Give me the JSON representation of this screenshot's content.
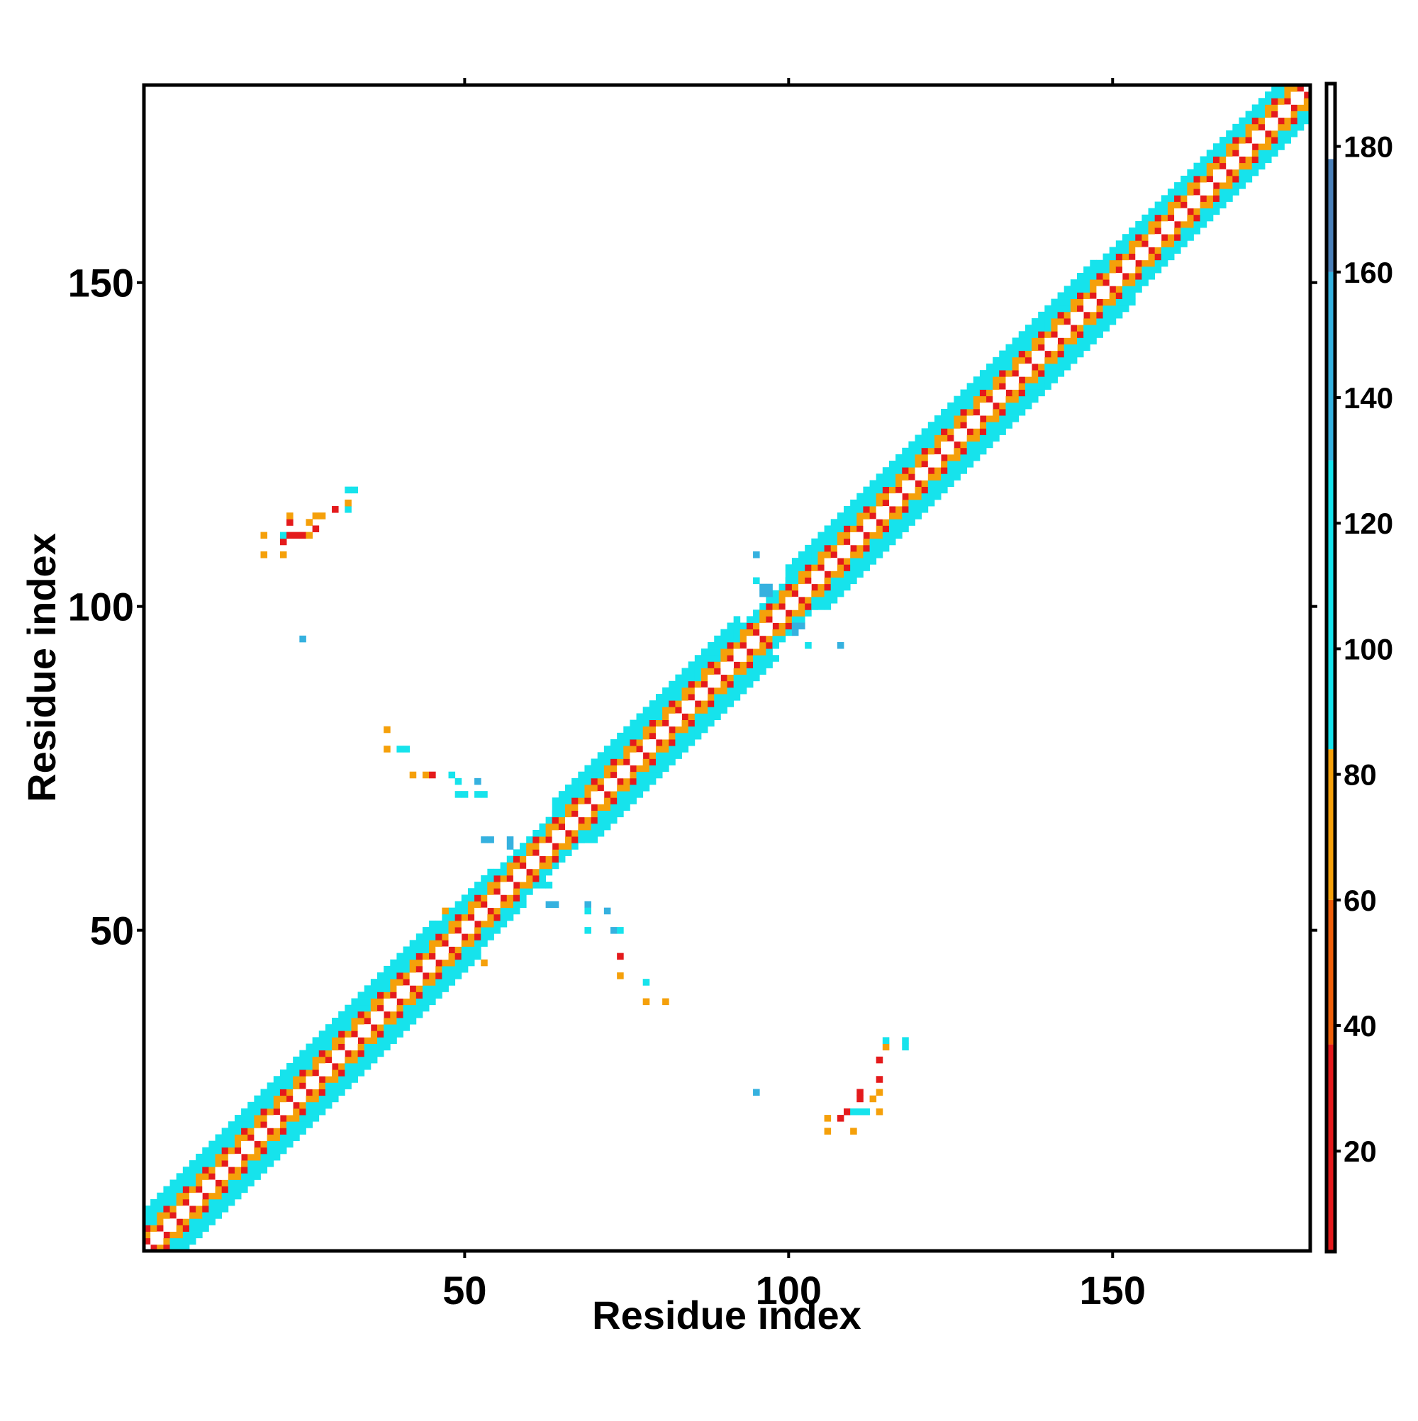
{
  "chart_data": {
    "type": "heatmap",
    "title": "",
    "xlabel": "Residue index",
    "ylabel": "Residue index",
    "xlim": [
      1,
      180
    ],
    "ylim": [
      1,
      180
    ],
    "x_ticks": [
      50,
      100,
      150
    ],
    "y_ticks": [
      50,
      100,
      150
    ],
    "x_tick_labels": [
      "50",
      "100",
      "150"
    ],
    "y_tick_labels": [
      "50",
      "100",
      "150"
    ],
    "grid": false,
    "legend": "colorbar-right",
    "colorbar": {
      "range": [
        4,
        190
      ],
      "ticks": [
        20,
        40,
        60,
        80,
        100,
        120,
        140,
        160,
        180
      ],
      "tick_labels": [
        "20",
        "40",
        "60",
        "80",
        "100",
        "120",
        "140",
        "160",
        "180"
      ],
      "bands": [
        {
          "from": 4,
          "to": 37,
          "color": "#e41a1c"
        },
        {
          "from": 37,
          "to": 60,
          "color": "#ef5f0a"
        },
        {
          "from": 60,
          "to": 84,
          "color": "#f5a00a"
        },
        {
          "from": 84,
          "to": 130,
          "color": "#16e3ec"
        },
        {
          "from": 130,
          "to": 160,
          "color": "#35b1df"
        },
        {
          "from": 160,
          "to": 178,
          "color": "#4a7fb8"
        },
        {
          "from": 178,
          "to": 190,
          "color": "#ffffff"
        }
      ]
    },
    "contact_bands": [
      {
        "from": 1,
        "to": 45,
        "width": 6
      },
      {
        "from": 45,
        "to": 54,
        "width": 5
      },
      {
        "from": 54,
        "to": 64,
        "width": 4
      },
      {
        "from": 64,
        "to": 92,
        "width": 6
      },
      {
        "from": 92,
        "to": 100,
        "width": 4
      },
      {
        "from": 100,
        "to": 133,
        "width": 6
      },
      {
        "from": 133,
        "to": 147,
        "width": 6
      },
      {
        "from": 147,
        "to": 180,
        "width": 5
      }
    ],
    "off_diagonal_contacts": [
      {
        "x": 19,
        "y": 108,
        "value": 70
      },
      {
        "x": 19,
        "y": 111,
        "value": 70
      },
      {
        "x": 22,
        "y": 108,
        "value": 70
      },
      {
        "x": 22,
        "y": 110,
        "value": 20
      },
      {
        "x": 22,
        "y": 111,
        "value": 95
      },
      {
        "x": 23,
        "y": 111,
        "value": 20
      },
      {
        "x": 23,
        "y": 113,
        "value": 20
      },
      {
        "x": 23,
        "y": 114,
        "value": 70
      },
      {
        "x": 24,
        "y": 111,
        "value": 20
      },
      {
        "x": 25,
        "y": 111,
        "value": 20
      },
      {
        "x": 26,
        "y": 111,
        "value": 70
      },
      {
        "x": 26,
        "y": 113,
        "value": 70
      },
      {
        "x": 27,
        "y": 112,
        "value": 20
      },
      {
        "x": 27,
        "y": 114,
        "value": 70
      },
      {
        "x": 28,
        "y": 114,
        "value": 70
      },
      {
        "x": 30,
        "y": 115,
        "value": 20
      },
      {
        "x": 32,
        "y": 115,
        "value": 95
      },
      {
        "x": 32,
        "y": 116,
        "value": 70
      },
      {
        "x": 32,
        "y": 118,
        "value": 95
      },
      {
        "x": 33,
        "y": 118,
        "value": 95
      },
      {
        "x": 25,
        "y": 95,
        "value": 140
      },
      {
        "x": 38,
        "y": 81,
        "value": 70
      },
      {
        "x": 38,
        "y": 78,
        "value": 70
      },
      {
        "x": 40,
        "y": 78,
        "value": 95
      },
      {
        "x": 41,
        "y": 78,
        "value": 95
      },
      {
        "x": 42,
        "y": 74,
        "value": 70
      },
      {
        "x": 44,
        "y": 74,
        "value": 70
      },
      {
        "x": 45,
        "y": 74,
        "value": 20
      },
      {
        "x": 48,
        "y": 74,
        "value": 95
      },
      {
        "x": 49,
        "y": 73,
        "value": 95
      },
      {
        "x": 49,
        "y": 71,
        "value": 95
      },
      {
        "x": 50,
        "y": 71,
        "value": 95
      },
      {
        "x": 52,
        "y": 73,
        "value": 140
      },
      {
        "x": 52,
        "y": 71,
        "value": 95
      },
      {
        "x": 53,
        "y": 71,
        "value": 95
      },
      {
        "x": 53,
        "y": 64,
        "value": 140
      },
      {
        "x": 54,
        "y": 64,
        "value": 140
      },
      {
        "x": 57,
        "y": 64,
        "value": 140
      },
      {
        "x": 57,
        "y": 63,
        "value": 140
      },
      {
        "x": 62,
        "y": 57,
        "value": 95
      },
      {
        "x": 63,
        "y": 57,
        "value": 95
      },
      {
        "x": 63,
        "y": 54,
        "value": 140
      },
      {
        "x": 64,
        "y": 54,
        "value": 140
      },
      {
        "x": 69,
        "y": 54,
        "value": 140
      },
      {
        "x": 69,
        "y": 53,
        "value": 95
      },
      {
        "x": 72,
        "y": 53,
        "value": 140
      },
      {
        "x": 69,
        "y": 50,
        "value": 95
      },
      {
        "x": 73,
        "y": 50,
        "value": 140
      },
      {
        "x": 74,
        "y": 50,
        "value": 95
      },
      {
        "x": 74,
        "y": 46,
        "value": 20
      },
      {
        "x": 74,
        "y": 43,
        "value": 70
      },
      {
        "x": 78,
        "y": 42,
        "value": 95
      },
      {
        "x": 78,
        "y": 39,
        "value": 70
      },
      {
        "x": 81,
        "y": 39,
        "value": 70
      },
      {
        "x": 47,
        "y": 53,
        "value": 70
      },
      {
        "x": 46,
        "y": 50,
        "value": 95
      },
      {
        "x": 50,
        "y": 46,
        "value": 95
      },
      {
        "x": 52,
        "y": 46,
        "value": 95
      },
      {
        "x": 53,
        "y": 45,
        "value": 70
      },
      {
        "x": 95,
        "y": 108,
        "value": 140
      },
      {
        "x": 95,
        "y": 104,
        "value": 95
      },
      {
        "x": 96,
        "y": 103,
        "value": 140
      },
      {
        "x": 97,
        "y": 103,
        "value": 140
      },
      {
        "x": 96,
        "y": 102,
        "value": 140
      },
      {
        "x": 97,
        "y": 102,
        "value": 140
      },
      {
        "x": 101,
        "y": 97,
        "value": 140
      },
      {
        "x": 102,
        "y": 97,
        "value": 140
      },
      {
        "x": 101,
        "y": 96,
        "value": 140
      },
      {
        "x": 103,
        "y": 94,
        "value": 95
      },
      {
        "x": 108,
        "y": 94,
        "value": 140
      },
      {
        "x": 95,
        "y": 25,
        "value": 140
      },
      {
        "x": 106,
        "y": 19,
        "value": 70
      },
      {
        "x": 106,
        "y": 21,
        "value": 70
      },
      {
        "x": 108,
        "y": 21,
        "value": 20
      },
      {
        "x": 109,
        "y": 22,
        "value": 20
      },
      {
        "x": 110,
        "y": 19,
        "value": 70
      },
      {
        "x": 110,
        "y": 22,
        "value": 95
      },
      {
        "x": 111,
        "y": 22,
        "value": 95
      },
      {
        "x": 111,
        "y": 24,
        "value": 20
      },
      {
        "x": 111,
        "y": 25,
        "value": 20
      },
      {
        "x": 112,
        "y": 22,
        "value": 95
      },
      {
        "x": 113,
        "y": 24,
        "value": 70
      },
      {
        "x": 114,
        "y": 22,
        "value": 70
      },
      {
        "x": 114,
        "y": 25,
        "value": 70
      },
      {
        "x": 114,
        "y": 27,
        "value": 20
      },
      {
        "x": 114,
        "y": 30,
        "value": 20
      },
      {
        "x": 115,
        "y": 32,
        "value": 70
      },
      {
        "x": 115,
        "y": 33,
        "value": 95
      },
      {
        "x": 118,
        "y": 32,
        "value": 95
      },
      {
        "x": 118,
        "y": 33,
        "value": 95
      }
    ]
  }
}
